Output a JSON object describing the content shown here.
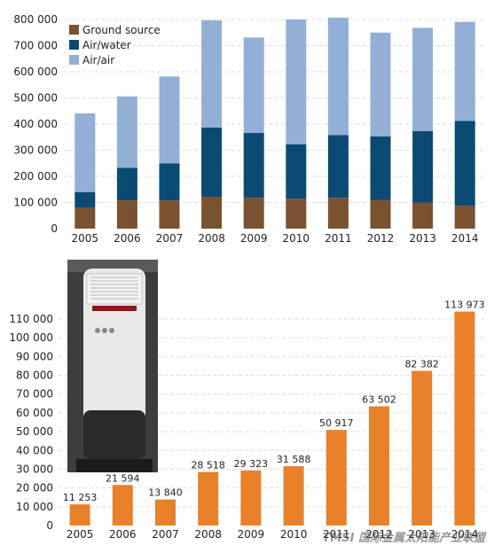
{
  "chart_data": [
    {
      "type": "bar",
      "stacked": true,
      "categories": [
        "2005",
        "2006",
        "2007",
        "2008",
        "2009",
        "2010",
        "2011",
        "2012",
        "2013",
        "2014"
      ],
      "series": [
        {
          "name": "Ground source",
          "color": "#7a5230",
          "values": [
            80000,
            108000,
            108000,
            122000,
            118000,
            115000,
            118000,
            110000,
            100000,
            88000
          ]
        },
        {
          "name": "Air/water",
          "color": "#0b4a72",
          "values": [
            60000,
            125000,
            142000,
            265000,
            248000,
            208000,
            240000,
            243000,
            273000,
            324000
          ]
        },
        {
          "name": "Air/air",
          "color": "#93afd5",
          "values": [
            301000,
            273000,
            332000,
            410000,
            365000,
            477000,
            449000,
            397000,
            395000,
            379000
          ]
        }
      ],
      "ylim": [
        0,
        800000
      ],
      "yticks": [
        "0",
        "100 000",
        "200 000",
        "300 000",
        "400 000",
        "500 000",
        "600 000",
        "700 000",
        "800 000"
      ],
      "ytick_values": [
        0,
        100000,
        200000,
        300000,
        400000,
        500000,
        600000,
        700000,
        800000
      ],
      "grid": true,
      "legend": "top-left"
    },
    {
      "type": "bar",
      "categories": [
        "2005",
        "2006",
        "2007",
        "2008",
        "2009",
        "2010",
        "2011",
        "2012",
        "2013",
        "2014"
      ],
      "values": [
        11253,
        21594,
        13840,
        28518,
        29323,
        31588,
        50917,
        63502,
        82382,
        113973
      ],
      "value_labels": [
        "11 253",
        "21 594",
        "13 840",
        "28 518",
        "29 323",
        "31 588",
        "50 917",
        "63 502",
        "82 382",
        "113 973"
      ],
      "color": "#e8812a",
      "ylim": [
        0,
        110000
      ],
      "yticks": [
        "0",
        "10 000",
        "20 000",
        "30 000",
        "40 000",
        "50 000",
        "60 000",
        "70 000",
        "80 000",
        "90 000",
        "100 000",
        "110 000"
      ],
      "ytick_values": [
        0,
        10000,
        20000,
        30000,
        40000,
        50000,
        60000,
        70000,
        80000,
        90000,
        100000,
        110000
      ],
      "grid": true
    }
  ],
  "watermark": "TMSI 国际金属太阳能产业联盟",
  "photo_icon": "heat-pump-water-heater-photo"
}
